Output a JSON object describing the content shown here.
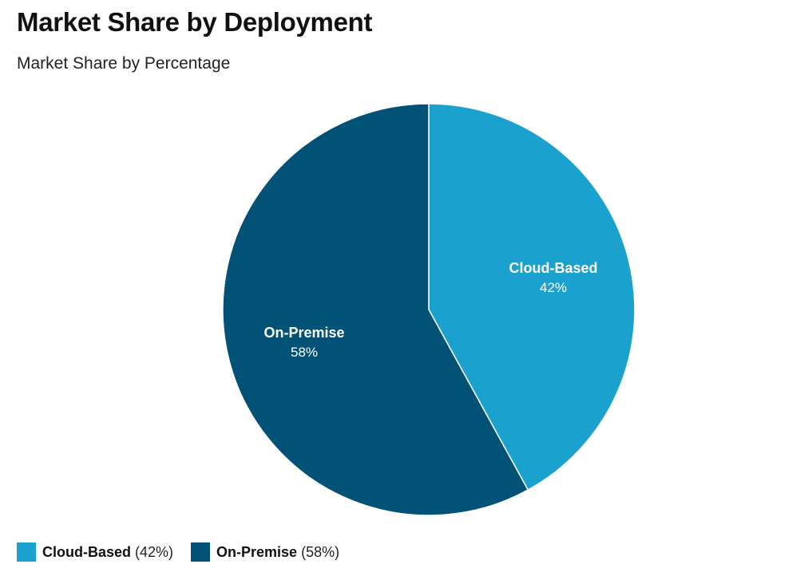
{
  "chart_data": {
    "type": "pie",
    "title": "Market Share by Deployment",
    "subtitle": "Market Share by Percentage",
    "slices": [
      {
        "name": "Cloud-Based",
        "value": 42,
        "label": "42%",
        "legend_pct": "(42%)",
        "color": "#1ba1ce"
      },
      {
        "name": "On-Premise",
        "value": 58,
        "label": "58%",
        "legend_pct": "(58%)",
        "color": "#025278"
      }
    ],
    "legend_position": "bottom-left",
    "start_angle": "12 o'clock",
    "direction": "clockwise"
  }
}
